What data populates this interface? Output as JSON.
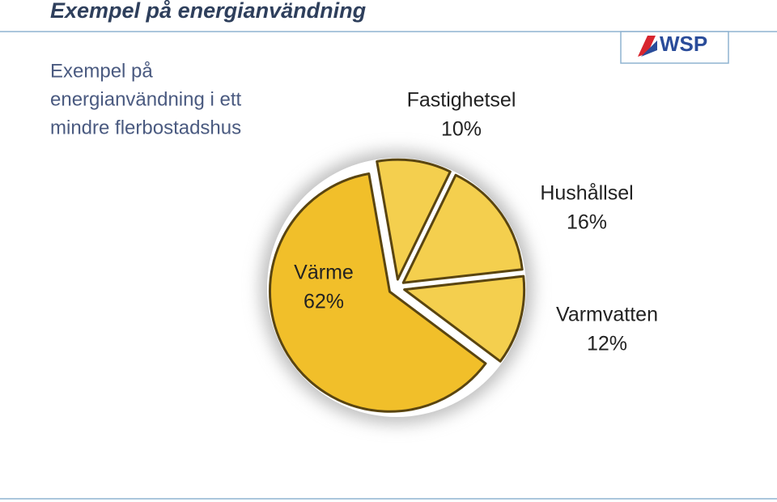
{
  "header": {
    "title": "Exempel på energianvändning",
    "logo": "WSP"
  },
  "subtitle_lines": [
    "Exempel på",
    "energianvändning i ett",
    "mindre flerbostadshus"
  ],
  "chart_data": {
    "type": "pie",
    "categories": [
      "Fastighetsel",
      "Hushållsel",
      "Varmvatten",
      "Värme"
    ],
    "values": [
      10,
      16,
      12,
      62
    ],
    "value_labels": [
      "10%",
      "16%",
      "12%",
      "62%"
    ],
    "colors": [
      "#f4cf4e",
      "#f4cf4e",
      "#f4cf4e",
      "#f1bf2a"
    ]
  }
}
